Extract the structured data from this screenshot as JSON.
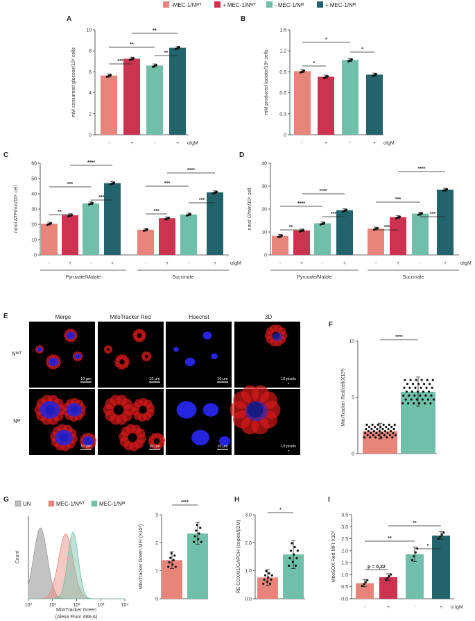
{
  "colors": {
    "c1": "#e8857a",
    "c2": "#cc3350",
    "c3": "#6fbfa9",
    "c4": "#23636b",
    "hist_un": "#bdbdbd"
  },
  "legend": [
    "-MEC-1/Nᵂᵀ",
    "+ MEC-1/Nᵂᵀ",
    "- MEC-1/Nᴹ",
    "+ MEC-1/Nᴹ"
  ],
  "panel_E": {
    "columns": [
      "Merge",
      "MitoTracker Red",
      "Hoechst",
      "3D"
    ],
    "rows": [
      "Nᵂᵀ",
      "Nᴹ"
    ],
    "scalebar": "10 μm",
    "scalebar_3d": "10 pixels"
  },
  "chart_data": [
    {
      "id": "A",
      "type": "bar",
      "ylabel": "mM consumed glucose/10⁶ cells",
      "ylim": [
        0,
        10
      ],
      "yticks": [
        0,
        2,
        4,
        6,
        8,
        10
      ],
      "categories": [
        "-",
        "+",
        "-",
        "+"
      ],
      "values": [
        5.65,
        7.25,
        6.6,
        8.3
      ],
      "xlabel": "αIgM",
      "sig": [
        {
          "from": 0,
          "to": 1,
          "label": "***"
        },
        {
          "from": 2,
          "to": 3,
          "label": "**"
        },
        {
          "from": 0,
          "to": 2,
          "label": "**"
        },
        {
          "from": 1,
          "to": 3,
          "label": "**"
        }
      ]
    },
    {
      "id": "B",
      "type": "bar",
      "ylabel": "mM produced lactate/10⁶ cells",
      "ylim": [
        0,
        1.5
      ],
      "yticks": [
        0,
        0.3,
        0.6,
        0.9,
        1.2,
        1.5
      ],
      "ytick_labels": [
        "0",
        "0.3",
        "0.6",
        "0.9",
        "1.2",
        "1.5"
      ],
      "categories": [
        "-",
        "+",
        "-",
        "+"
      ],
      "values": [
        0.91,
        0.83,
        1.07,
        0.86
      ],
      "xlabel": "αIgM",
      "sig": [
        {
          "from": 0,
          "to": 1,
          "label": "*"
        },
        {
          "from": 2,
          "to": 3,
          "label": "*"
        },
        {
          "from": 0,
          "to": 2,
          "label": "*"
        }
      ]
    },
    {
      "id": "C",
      "type": "bar",
      "ylabel": "nmol ATP/min/10⁶ cell",
      "ylim": [
        0,
        60
      ],
      "yticks": [
        0,
        10,
        20,
        30,
        40,
        50,
        60
      ],
      "groups": [
        "Pyruvate/Malate",
        "Succinate"
      ],
      "categories": [
        "-",
        "+",
        "-",
        "+",
        "-",
        "+",
        "-",
        "+"
      ],
      "xlabel": "αIgM",
      "values": [
        20.5,
        26,
        33.8,
        47,
        16.5,
        24,
        26.5,
        41
      ],
      "sig": [
        {
          "from": 0,
          "to": 1,
          "label": "**"
        },
        {
          "from": 2,
          "to": 3,
          "label": "***"
        },
        {
          "from": 0,
          "to": 2,
          "label": "***"
        },
        {
          "from": 1,
          "to": 3,
          "label": "****"
        },
        {
          "from": 4,
          "to": 5,
          "label": "***"
        },
        {
          "from": 6,
          "to": 7,
          "label": "***"
        },
        {
          "from": 4,
          "to": 6,
          "label": "***"
        },
        {
          "from": 5,
          "to": 7,
          "label": "****"
        }
      ]
    },
    {
      "id": "D",
      "type": "bar",
      "ylabel": "nmol O/min/10⁶ cell",
      "ylim": [
        0,
        40
      ],
      "yticks": [
        0,
        10,
        20,
        30,
        40
      ],
      "groups": [
        "Pyruvate/Malate",
        "Succinate"
      ],
      "categories": [
        "-",
        "+",
        "-",
        "+",
        "-",
        "+",
        "-",
        "+"
      ],
      "xlabel": "αIgM",
      "values": [
        8.3,
        10.7,
        13.8,
        19.5,
        11.5,
        16.5,
        18,
        28.5
      ],
      "sig": [
        {
          "from": 0,
          "to": 1,
          "label": "**"
        },
        {
          "from": 2,
          "to": 3,
          "label": "***"
        },
        {
          "from": 0,
          "to": 2,
          "label": "****"
        },
        {
          "from": 1,
          "to": 3,
          "label": "****"
        },
        {
          "from": 4,
          "to": 5,
          "label": "***"
        },
        {
          "from": 6,
          "to": 7,
          "label": "***"
        },
        {
          "from": 4,
          "to": 6,
          "label": "***"
        },
        {
          "from": 5,
          "to": 7,
          "label": "****"
        }
      ]
    },
    {
      "id": "F",
      "type": "bar",
      "ylabel": "MitoTracker Red/cell(X10³)",
      "ylim": [
        0,
        10
      ],
      "yticks": [
        0,
        5,
        10
      ],
      "values": [
        2.0,
        5.5
      ],
      "sd": [
        0.7,
        1.3
      ],
      "sig": [
        {
          "from": 0,
          "to": 1,
          "label": "****"
        }
      ]
    },
    {
      "id": "G_hist",
      "type": "area",
      "xlabel": "MitoTracker Green",
      "xlabel2": "(Alexa Fluor 488-A)",
      "ylabel": "Count",
      "legend": [
        "UN",
        "MEC-1/Nᵂᵀ",
        "MEC-1/Nᴹ"
      ],
      "xticks": [
        "10⁰",
        "10¹",
        "10²",
        "10³",
        "10⁴"
      ],
      "peaks_log10": [
        0.5,
        1.55,
        1.85
      ]
    },
    {
      "id": "G_bar",
      "type": "bar",
      "ylabel": "MitoTracker Green MFI (X10³)",
      "ylim": [
        0,
        3
      ],
      "yticks": [
        0,
        1,
        2,
        3
      ],
      "values": [
        1.38,
        2.33
      ],
      "sd": [
        0.3,
        0.38
      ],
      "sig": [
        {
          "from": 0,
          "to": 1,
          "label": "****"
        }
      ]
    },
    {
      "id": "H",
      "type": "bar",
      "ylabel": "RE COX4I1/GAPDH (copies/β2M)",
      "ylim": [
        0,
        3
      ],
      "yticks": [
        0,
        1,
        2,
        3
      ],
      "ytick_labels": [
        "0.0",
        "1.0",
        "2.0",
        "3.0"
      ],
      "values": [
        0.76,
        1.58
      ],
      "sd": [
        0.28,
        0.5
      ],
      "sig": [
        {
          "from": 0,
          "to": 1,
          "label": "*"
        }
      ]
    },
    {
      "id": "I",
      "type": "bar",
      "ylabel": "MitoSOX Red MFI X10³",
      "ylim": [
        0,
        3.5
      ],
      "yticks": [
        0,
        0.5,
        1,
        1.5,
        2,
        2.5,
        3,
        3.5
      ],
      "ytick_labels": [
        "0.0",
        "0.5",
        "1.0",
        "1.5",
        "2.0",
        "2.5",
        "3.0",
        "3.5"
      ],
      "categories": [
        "-",
        "+",
        "-",
        "+"
      ],
      "values": [
        0.65,
        0.9,
        1.85,
        2.63
      ],
      "sd": [
        0.15,
        0.14,
        0.3,
        0.16
      ],
      "xlabel": "α IgM",
      "sig": [
        {
          "from": 0,
          "to": 1,
          "label": "p = 0,22"
        },
        {
          "from": 2,
          "to": 3,
          "label": "*"
        },
        {
          "from": 0,
          "to": 2,
          "label": "**"
        },
        {
          "from": 1,
          "to": 3,
          "label": "**"
        }
      ]
    }
  ]
}
